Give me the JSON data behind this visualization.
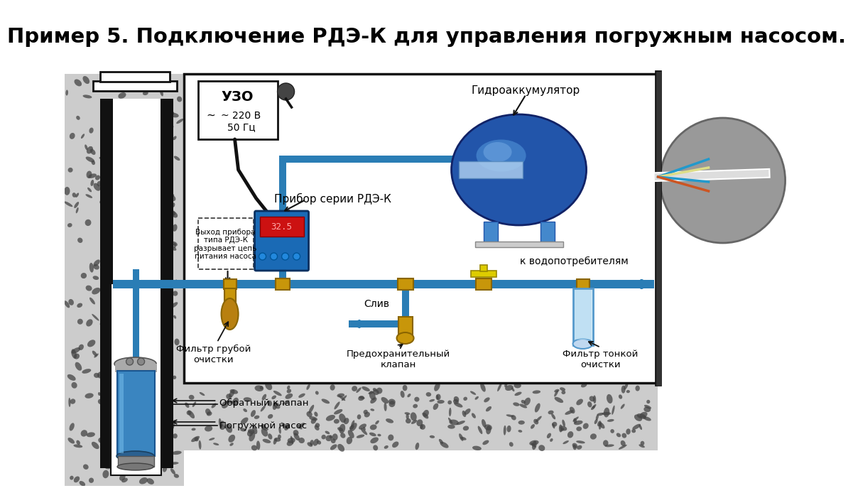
{
  "title": "Пример 5. Подключение РДЭ-К для управления погружным насосом.",
  "title_fontsize": 21,
  "title_fontweight": "bold",
  "bg_color": "#ffffff",
  "pipe_color": "#2a7db5",
  "labels": {
    "uzo": "УЗО",
    "uzo_sub": "~ 220 В\n50 Гц",
    "device": "Прибор серии РДЭ-К",
    "device_note": "Выход прибора\nтипа РДЭ-К\nразрывает цепь\nпитания насоса",
    "hydro": "Гидроаккумулятор",
    "filter_coarse": "Фильтр грубой\nочистки",
    "safety_valve": "Предохранительный\nклапан",
    "drain": "Слив",
    "filter_fine": "Фильтр тонкой\nочистки",
    "consumers": "к водопотребителям",
    "check_valve": "Обратный клапан",
    "pump": "Погружной насос"
  }
}
